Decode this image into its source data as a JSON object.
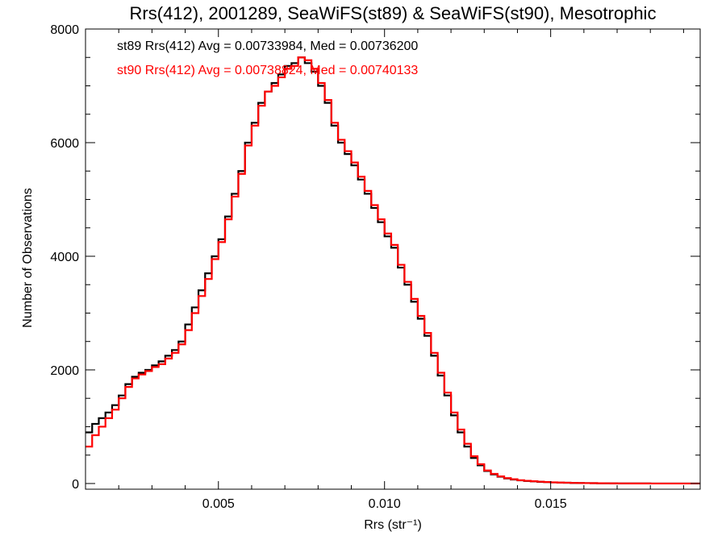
{
  "chart_data": {
    "type": "line",
    "title": "Rrs(412), 2001289, SeaWiFS(st89) & SeaWiFS(st90), Mesotrophic",
    "xlabel": "Rrs (str⁻¹)",
    "ylabel": "Number of Observations",
    "xlim": [
      0.001,
      0.0195
    ],
    "ylim": [
      -100,
      8000
    ],
    "xticks": [
      0.005,
      0.01,
      0.015
    ],
    "xtick_labels": [
      "0.005",
      "0.010",
      "0.015"
    ],
    "yticks": [
      0,
      2000,
      4000,
      6000,
      8000
    ],
    "ytick_labels": [
      "0",
      "2000",
      "4000",
      "6000",
      "8000"
    ],
    "grid": false,
    "annotations": [
      {
        "text": "st89 Rrs(412) Avg = 0.00733984, Med = 0.00736200",
        "color": "#000000"
      },
      {
        "text": "st90 Rrs(412) Avg = 0.00738824, Med = 0.00740133",
        "color": "#ff0000"
      }
    ],
    "series": [
      {
        "color": "#000000",
        "x": [
          0.001,
          0.0012,
          0.0014,
          0.0016,
          0.0018,
          0.002,
          0.0022,
          0.0024,
          0.0026,
          0.0028,
          0.003,
          0.0032,
          0.0034,
          0.0036,
          0.0038,
          0.004,
          0.0042,
          0.0044,
          0.0046,
          0.0048,
          0.005,
          0.0052,
          0.0054,
          0.0056,
          0.0058,
          0.006,
          0.0062,
          0.0064,
          0.0066,
          0.0068,
          0.007,
          0.0072,
          0.0074,
          0.0076,
          0.0078,
          0.008,
          0.0082,
          0.0084,
          0.0086,
          0.0088,
          0.009,
          0.0092,
          0.0094,
          0.0096,
          0.0098,
          0.01,
          0.0102,
          0.0104,
          0.0106,
          0.0108,
          0.011,
          0.0112,
          0.0114,
          0.0116,
          0.0118,
          0.012,
          0.0122,
          0.0124,
          0.0126,
          0.0128,
          0.013,
          0.0132,
          0.0134,
          0.0136,
          0.0138,
          0.014,
          0.0142,
          0.0144,
          0.0146,
          0.0148,
          0.015,
          0.0152,
          0.0154,
          0.0156,
          0.0158,
          0.016,
          0.0162,
          0.0164,
          0.0166,
          0.0168,
          0.017,
          0.0172,
          0.0174,
          0.0176,
          0.0178,
          0.018,
          0.0182,
          0.0184,
          0.0186,
          0.0188,
          0.019,
          0.0192,
          0.0194
        ],
        "y": [
          900,
          1050,
          1150,
          1250,
          1380,
          1550,
          1750,
          1880,
          1950,
          2000,
          2080,
          2150,
          2250,
          2350,
          2500,
          2800,
          3100,
          3400,
          3700,
          4000,
          4300,
          4700,
          5100,
          5500,
          6000,
          6350,
          6700,
          6900,
          7050,
          7200,
          7350,
          7400,
          7500,
          7400,
          7250,
          7000,
          6700,
          6300,
          6000,
          5800,
          5600,
          5350,
          5100,
          4850,
          4600,
          4350,
          4150,
          3800,
          3500,
          3200,
          2900,
          2600,
          2250,
          1900,
          1550,
          1200,
          900,
          650,
          450,
          320,
          220,
          160,
          120,
          90,
          70,
          55,
          45,
          38,
          30,
          25,
          20,
          16,
          13,
          10,
          8,
          7,
          6,
          5,
          4,
          3,
          2,
          2,
          1,
          1,
          1,
          0,
          0,
          0,
          0,
          0,
          0,
          0,
          0
        ]
      },
      {
        "color": "#ff0000",
        "x": [
          0.001,
          0.0012,
          0.0014,
          0.0016,
          0.0018,
          0.002,
          0.0022,
          0.0024,
          0.0026,
          0.0028,
          0.003,
          0.0032,
          0.0034,
          0.0036,
          0.0038,
          0.004,
          0.0042,
          0.0044,
          0.0046,
          0.0048,
          0.005,
          0.0052,
          0.0054,
          0.0056,
          0.0058,
          0.006,
          0.0062,
          0.0064,
          0.0066,
          0.0068,
          0.007,
          0.0072,
          0.0074,
          0.0076,
          0.0078,
          0.008,
          0.0082,
          0.0084,
          0.0086,
          0.0088,
          0.009,
          0.0092,
          0.0094,
          0.0096,
          0.0098,
          0.01,
          0.0102,
          0.0104,
          0.0106,
          0.0108,
          0.011,
          0.0112,
          0.0114,
          0.0116,
          0.0118,
          0.012,
          0.0122,
          0.0124,
          0.0126,
          0.0128,
          0.013,
          0.0132,
          0.0134,
          0.0136,
          0.0138,
          0.014,
          0.0142,
          0.0144,
          0.0146,
          0.0148,
          0.015,
          0.0152,
          0.0154,
          0.0156,
          0.0158,
          0.016,
          0.0162,
          0.0164,
          0.0166,
          0.0168,
          0.017,
          0.0172,
          0.0174,
          0.0176,
          0.0178,
          0.018,
          0.0182,
          0.0184,
          0.0186,
          0.0188,
          0.019,
          0.0192,
          0.0194
        ],
        "y": [
          650,
          850,
          1000,
          1150,
          1300,
          1500,
          1700,
          1850,
          1920,
          1980,
          2050,
          2100,
          2200,
          2300,
          2450,
          2700,
          3000,
          3300,
          3600,
          3950,
          4250,
          4650,
          5050,
          5450,
          5950,
          6300,
          6650,
          6900,
          7000,
          7150,
          7300,
          7350,
          7500,
          7450,
          7300,
          7050,
          6750,
          6350,
          6050,
          5850,
          5650,
          5400,
          5150,
          4900,
          4650,
          4400,
          4200,
          3850,
          3550,
          3250,
          2950,
          2650,
          2300,
          1950,
          1600,
          1250,
          950,
          700,
          480,
          340,
          230,
          170,
          125,
          95,
          75,
          58,
          48,
          40,
          32,
          26,
          21,
          17,
          14,
          11,
          9,
          7,
          6,
          5,
          4,
          3,
          2,
          2,
          1,
          1,
          1,
          0,
          0,
          0,
          0,
          0,
          0,
          0,
          0
        ]
      }
    ]
  }
}
